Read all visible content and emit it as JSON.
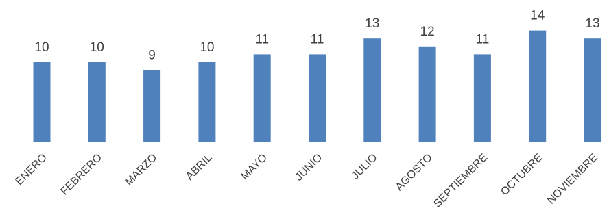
{
  "chart_data": {
    "type": "bar",
    "title": "",
    "xlabel": "",
    "ylabel": "",
    "categories": [
      "ENERO",
      "FEBRERO",
      "MARZO",
      "ABRIL",
      "MAYO",
      "JUNIO",
      "JULIO",
      "AGOSTO",
      "SEPTIEMBRE",
      "OCTUBRE",
      "NOVIEMBRE"
    ],
    "values": [
      10,
      10,
      9,
      10,
      11,
      11,
      13,
      12,
      11,
      14,
      13
    ],
    "ylim": [
      0,
      14
    ],
    "grid": false,
    "legend": "none",
    "data_labels": true,
    "bar_color": "#4f81bd",
    "axis_color": "#d9d9d9",
    "label_color": "#404040"
  }
}
